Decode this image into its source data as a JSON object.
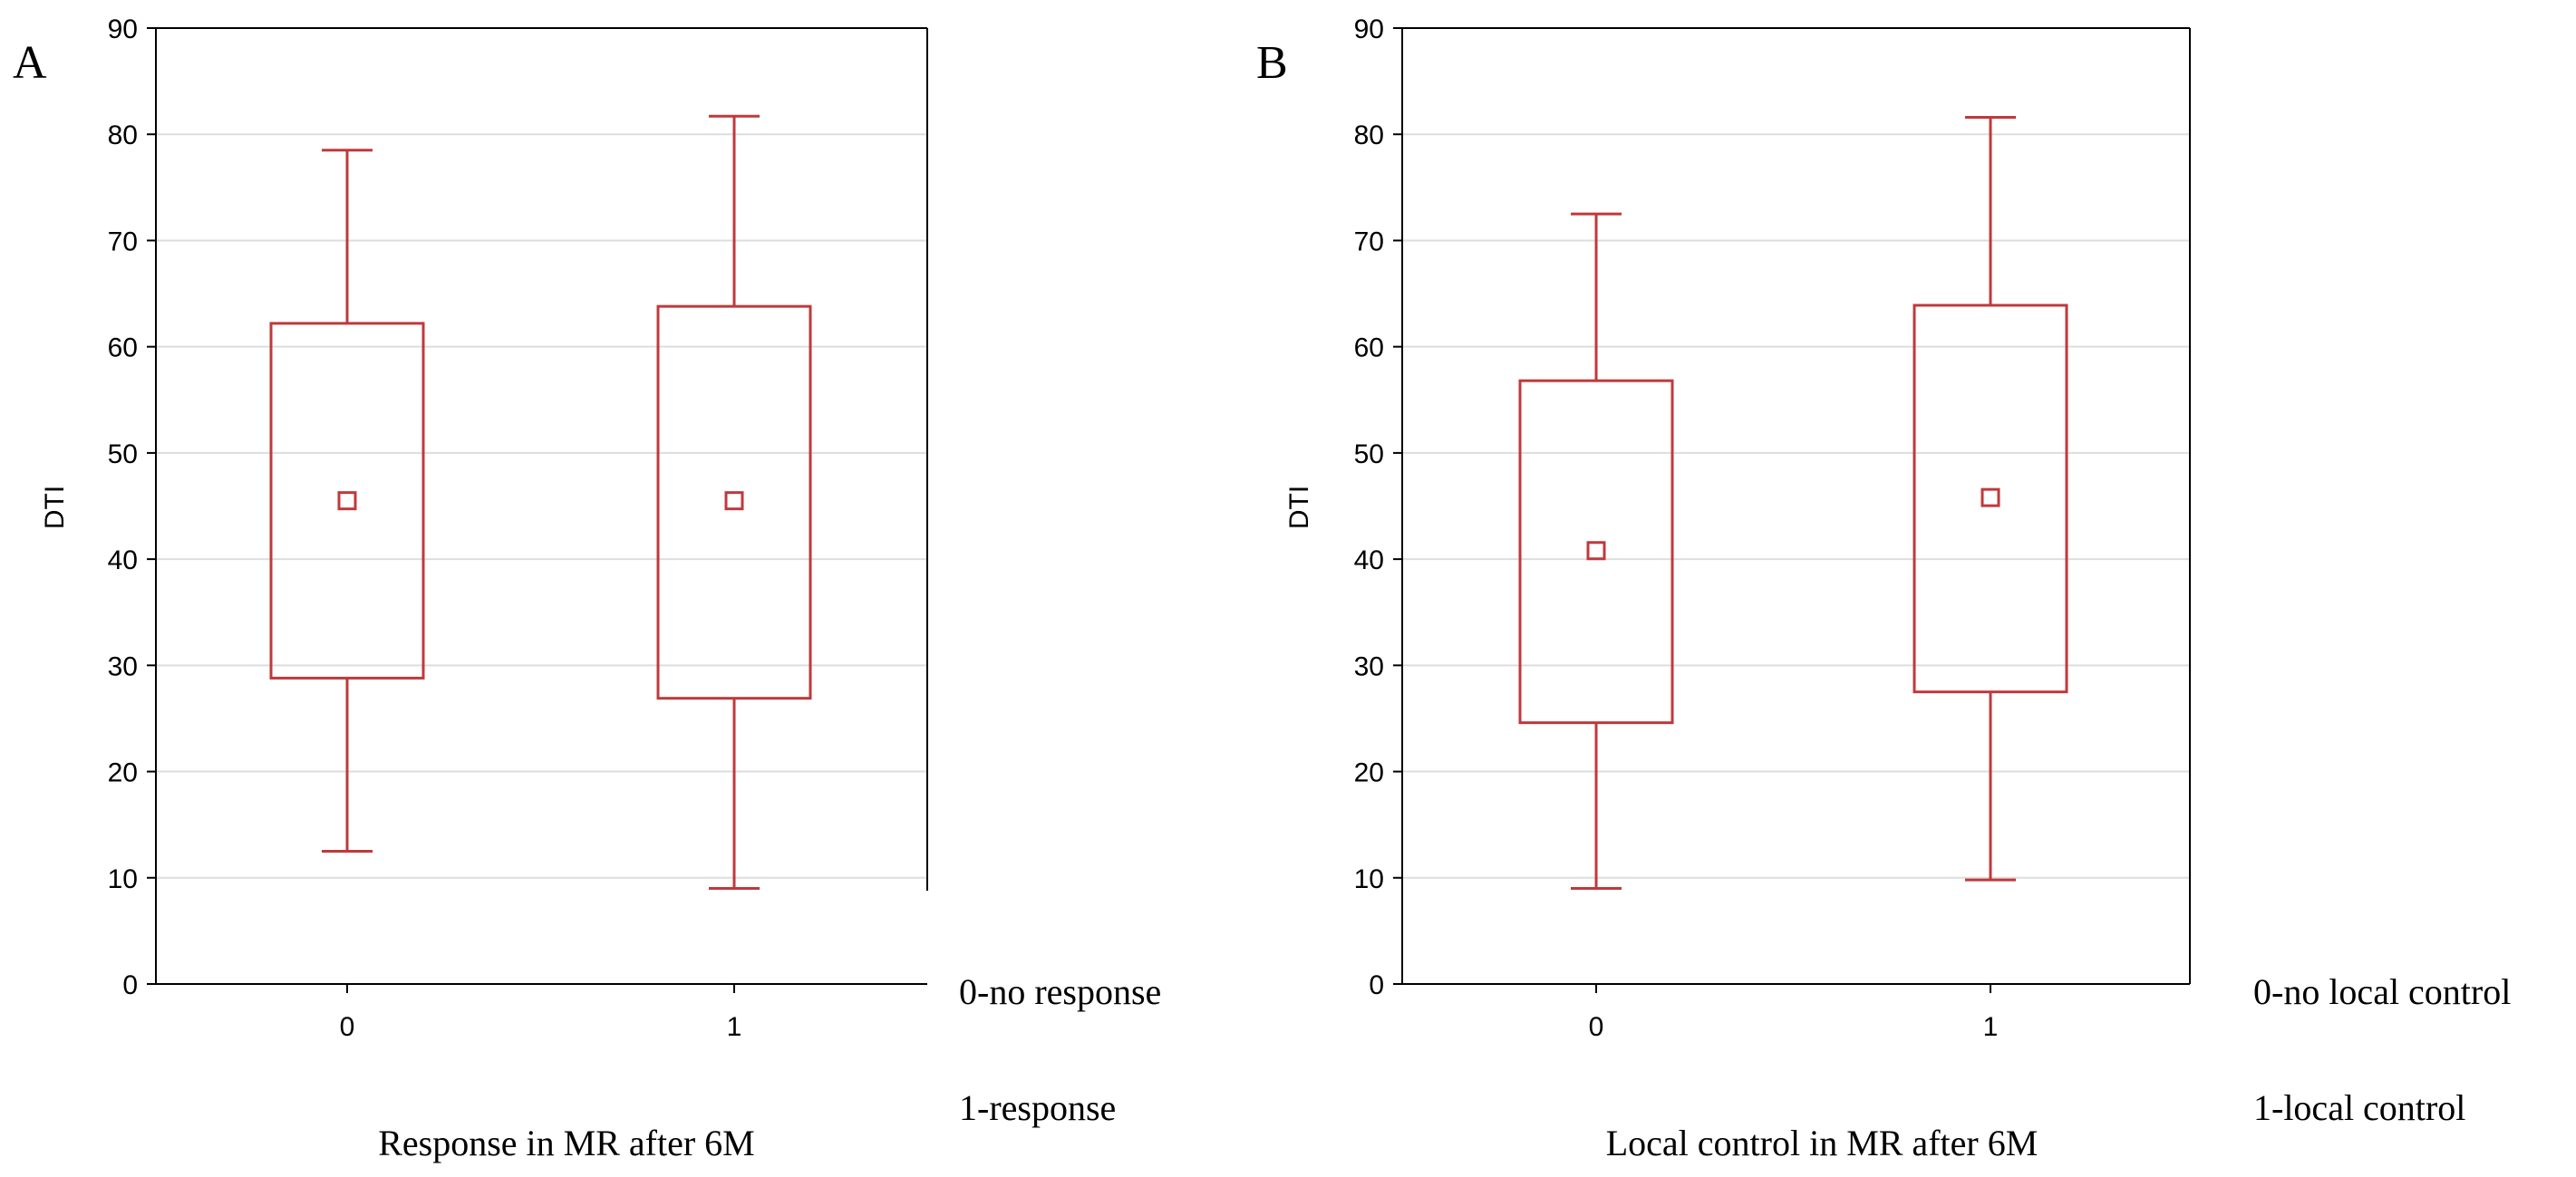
{
  "chart_data": [
    {
      "type": "box",
      "panel_label": "A",
      "ylabel": "DTI",
      "xlabel": "Response in MR after 6M",
      "categories": [
        "0",
        "1"
      ],
      "ylim": [
        0,
        90
      ],
      "yticks": [
        "0",
        "10",
        "20",
        "30",
        "40",
        "50",
        "60",
        "70",
        "80",
        "90"
      ],
      "legend_lines": [
        "0-no response",
        "1-response"
      ],
      "boxes": [
        {
          "category": "0",
          "whisker_low": 12.5,
          "q1": 28.8,
          "center": 45.5,
          "q3": 62.2,
          "whisker_high": 78.5
        },
        {
          "category": "1",
          "whisker_low": 9.0,
          "q1": 26.9,
          "center": 45.5,
          "q3": 63.8,
          "whisker_high": 81.7
        }
      ],
      "grid": true
    },
    {
      "type": "box",
      "panel_label": "B",
      "ylabel": "DTI",
      "xlabel": "Local control in MR after 6M",
      "categories": [
        "0",
        "1"
      ],
      "ylim": [
        0,
        90
      ],
      "yticks": [
        "0",
        "10",
        "20",
        "30",
        "40",
        "50",
        "60",
        "70",
        "80",
        "90"
      ],
      "legend_lines": [
        "0-no local control",
        "1-local control"
      ],
      "boxes": [
        {
          "category": "0",
          "whisker_low": 9.0,
          "q1": 24.6,
          "center": 40.8,
          "q3": 56.8,
          "whisker_high": 72.5
        },
        {
          "category": "1",
          "whisker_low": 9.8,
          "q1": 27.5,
          "center": 45.8,
          "q3": 63.9,
          "whisker_high": 81.6
        }
      ],
      "grid": true
    }
  ],
  "colors": {
    "box_stroke": "#c0393b",
    "grid": "#dddddd",
    "axis": "#000000"
  }
}
